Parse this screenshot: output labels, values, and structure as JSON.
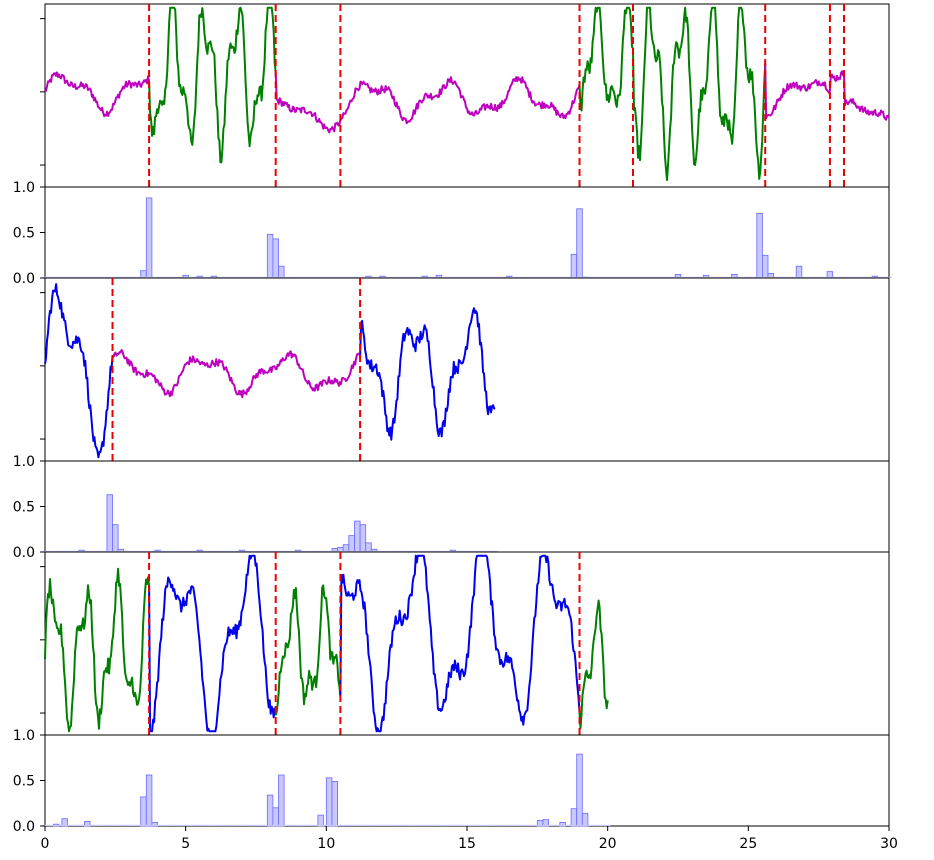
{
  "chart_data": {
    "type": "line",
    "description_free": true,
    "xlim": [
      0,
      30
    ],
    "x_ticks": [
      0,
      5,
      10,
      15,
      20,
      25,
      30
    ],
    "x_tick_labels": [
      "0",
      "5",
      "10",
      "15",
      "20",
      "25",
      "30"
    ],
    "bar_ylim": [
      0.0,
      1.0
    ],
    "bar_y_tick_labels": [
      "0.0",
      "0.5",
      "1.0"
    ],
    "colors": {
      "green": "#008000",
      "magenta": "#bf00bf",
      "blue": "#0000ee",
      "changepoint": "#ee0000",
      "bar_fill": "#c8c8ff",
      "bar_edge": "#6a6aff"
    },
    "panels": [
      {
        "x_end": 30,
        "segments": [
          {
            "color": "magenta",
            "x_start": 0.0,
            "x_end": 3.7,
            "mean": 0.52,
            "amp": 0.08,
            "freq": 2.2,
            "noise": 0.02
          },
          {
            "color": "green",
            "x_start": 3.7,
            "x_end": 8.2,
            "mean": 0.62,
            "amp": 0.32,
            "freq": 5.5,
            "noise": 0.05
          },
          {
            "color": "magenta",
            "x_start": 8.2,
            "x_end": 10.5,
            "mean": 0.4,
            "amp": 0.06,
            "freq": 2.0,
            "noise": 0.02
          },
          {
            "color": "magenta",
            "x_start": 10.5,
            "x_end": 19.0,
            "mean": 0.48,
            "amp": 0.08,
            "freq": 2.4,
            "noise": 0.02
          },
          {
            "color": "green",
            "x_start": 19.0,
            "x_end": 20.9,
            "mean": 0.68,
            "amp": 0.25,
            "freq": 5.5,
            "noise": 0.05
          },
          {
            "color": "green",
            "x_start": 20.9,
            "x_end": 25.6,
            "mean": 0.58,
            "amp": 0.35,
            "freq": 5.8,
            "noise": 0.05
          },
          {
            "color": "magenta",
            "x_start": 25.6,
            "x_end": 27.9,
            "mean": 0.5,
            "amp": 0.08,
            "freq": 2.0,
            "noise": 0.02
          },
          {
            "color": "magenta",
            "x_start": 27.9,
            "x_end": 28.4,
            "mean": 0.66,
            "amp": 0.05,
            "freq": 2.0,
            "noise": 0.02
          },
          {
            "color": "magenta",
            "x_start": 28.4,
            "x_end": 30.0,
            "mean": 0.4,
            "amp": 0.05,
            "freq": 2.2,
            "noise": 0.02
          }
        ],
        "changepoints": [
          3.7,
          8.2,
          10.5,
          19.0,
          20.9,
          25.6,
          27.9,
          28.4
        ],
        "bars": [
          {
            "x": 3.5,
            "value": 0.08
          },
          {
            "x": 3.7,
            "value": 0.88
          },
          {
            "x": 8.0,
            "value": 0.48
          },
          {
            "x": 8.2,
            "value": 0.43
          },
          {
            "x": 8.4,
            "value": 0.13
          },
          {
            "x": 18.8,
            "value": 0.26
          },
          {
            "x": 19.0,
            "value": 0.76
          },
          {
            "x": 19.2,
            "value": 0.01
          },
          {
            "x": 25.4,
            "value": 0.71
          },
          {
            "x": 25.6,
            "value": 0.25
          },
          {
            "x": 25.8,
            "value": 0.05
          },
          {
            "x": 26.8,
            "value": 0.13
          },
          {
            "x": 27.9,
            "value": 0.07
          },
          {
            "x": 5.0,
            "value": 0.03
          },
          {
            "x": 5.5,
            "value": 0.02
          },
          {
            "x": 6.0,
            "value": 0.02
          },
          {
            "x": 11.5,
            "value": 0.02
          },
          {
            "x": 12.0,
            "value": 0.02
          },
          {
            "x": 13.5,
            "value": 0.02
          },
          {
            "x": 14.0,
            "value": 0.03
          },
          {
            "x": 16.5,
            "value": 0.02
          },
          {
            "x": 22.5,
            "value": 0.04
          },
          {
            "x": 23.5,
            "value": 0.03
          },
          {
            "x": 24.5,
            "value": 0.04
          },
          {
            "x": 29.5,
            "value": 0.02
          }
        ]
      },
      {
        "x_end": 16,
        "segments": [
          {
            "color": "blue",
            "x_start": 0.0,
            "x_end": 2.4,
            "mean": 0.52,
            "amp": 0.35,
            "freq": 2.5,
            "noise": 0.04
          },
          {
            "color": "magenta",
            "x_start": 2.4,
            "x_end": 11.2,
            "mean": 0.48,
            "amp": 0.08,
            "freq": 2.2,
            "noise": 0.02
          },
          {
            "color": "blue",
            "x_start": 11.2,
            "x_end": 16.0,
            "mean": 0.5,
            "amp": 0.25,
            "freq": 3.2,
            "noise": 0.04
          }
        ],
        "changepoints": [
          2.4,
          11.2
        ],
        "bars": [
          {
            "x": 2.3,
            "value": 0.63
          },
          {
            "x": 2.5,
            "value": 0.3
          },
          {
            "x": 2.7,
            "value": 0.03
          },
          {
            "x": 10.3,
            "value": 0.04
          },
          {
            "x": 10.5,
            "value": 0.05
          },
          {
            "x": 10.7,
            "value": 0.08
          },
          {
            "x": 10.9,
            "value": 0.18
          },
          {
            "x": 11.1,
            "value": 0.34
          },
          {
            "x": 11.3,
            "value": 0.3
          },
          {
            "x": 11.5,
            "value": 0.1
          },
          {
            "x": 11.7,
            "value": 0.03
          },
          {
            "x": 1.3,
            "value": 0.02
          },
          {
            "x": 4.0,
            "value": 0.02
          },
          {
            "x": 5.5,
            "value": 0.02
          },
          {
            "x": 7.0,
            "value": 0.02
          },
          {
            "x": 9.0,
            "value": 0.02
          },
          {
            "x": 14.5,
            "value": 0.02
          }
        ]
      },
      {
        "x_end": 20,
        "segments": [
          {
            "color": "green",
            "x_start": 0.0,
            "x_end": 3.7,
            "mean": 0.45,
            "amp": 0.3,
            "freq": 5.5,
            "noise": 0.05
          },
          {
            "color": "blue",
            "x_start": 3.7,
            "x_end": 8.2,
            "mean": 0.5,
            "amp": 0.38,
            "freq": 2.6,
            "noise": 0.04
          },
          {
            "color": "green",
            "x_start": 8.2,
            "x_end": 10.5,
            "mean": 0.45,
            "amp": 0.25,
            "freq": 5.5,
            "noise": 0.05
          },
          {
            "color": "blue",
            "x_start": 10.5,
            "x_end": 19.0,
            "mean": 0.55,
            "amp": 0.38,
            "freq": 2.6,
            "noise": 0.04
          },
          {
            "color": "green",
            "x_start": 19.0,
            "x_end": 20.0,
            "mean": 0.35,
            "amp": 0.25,
            "freq": 5.5,
            "noise": 0.05
          }
        ],
        "changepoints": [
          3.7,
          8.2,
          10.5,
          19.0
        ],
        "bars": [
          {
            "x": 0.4,
            "value": 0.02
          },
          {
            "x": 0.7,
            "value": 0.08
          },
          {
            "x": 1.5,
            "value": 0.05
          },
          {
            "x": 3.5,
            "value": 0.32
          },
          {
            "x": 3.7,
            "value": 0.56
          },
          {
            "x": 3.9,
            "value": 0.04
          },
          {
            "x": 8.0,
            "value": 0.34
          },
          {
            "x": 8.2,
            "value": 0.2
          },
          {
            "x": 8.4,
            "value": 0.56
          },
          {
            "x": 9.8,
            "value": 0.12
          },
          {
            "x": 10.1,
            "value": 0.53
          },
          {
            "x": 10.3,
            "value": 0.49
          },
          {
            "x": 17.6,
            "value": 0.06
          },
          {
            "x": 17.8,
            "value": 0.07
          },
          {
            "x": 18.4,
            "value": 0.04
          },
          {
            "x": 18.8,
            "value": 0.19
          },
          {
            "x": 19.0,
            "value": 0.79
          },
          {
            "x": 19.2,
            "value": 0.14
          }
        ]
      }
    ]
  }
}
